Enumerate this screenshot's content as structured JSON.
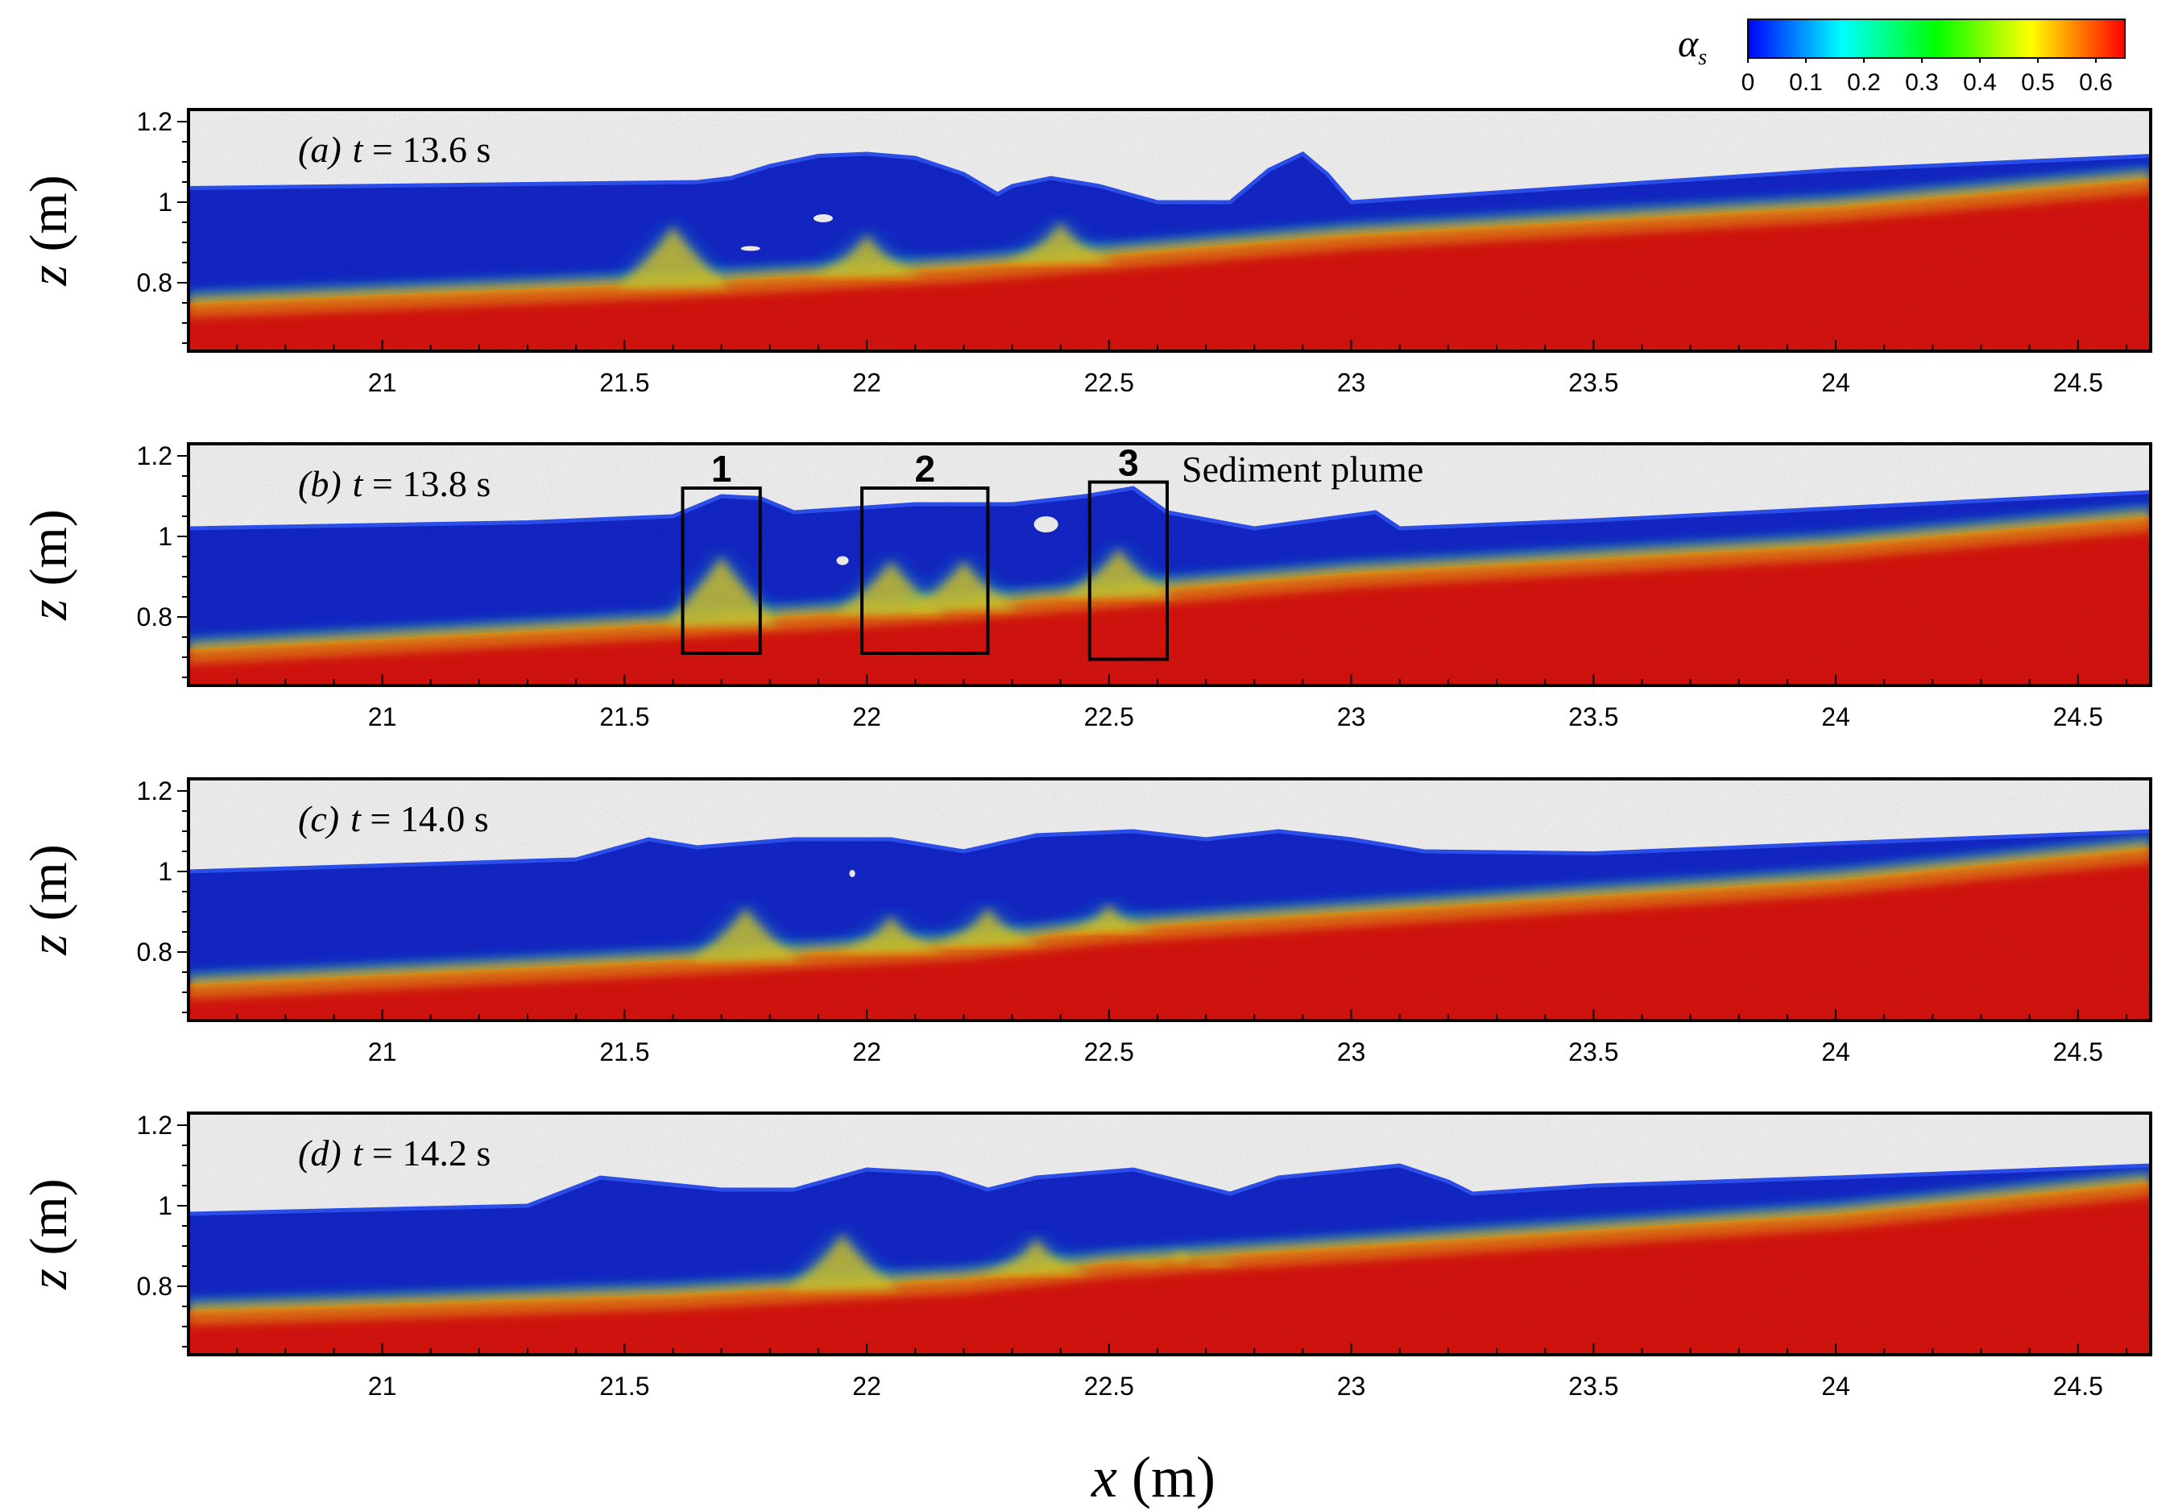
{
  "chart_data": {
    "type": "heatmap",
    "colorbar": {
      "label": "α_s",
      "label_symbol": "α",
      "label_subscript": "s",
      "range": [
        0,
        0.65
      ],
      "ticks": [
        "0",
        "0.1",
        "0.2",
        "0.3",
        "0.4",
        "0.5",
        "0.6"
      ],
      "tick_values": [
        0,
        0.1,
        0.2,
        0.3,
        0.4,
        0.5,
        0.6
      ],
      "colormap": [
        "#0000ff",
        "#00ffff",
        "#00ff00",
        "#ffff00",
        "#ff0000"
      ]
    },
    "xlabel": "x (m)",
    "xlabel_var": "x",
    "xlabel_unit": " (m)",
    "ylabel": "z (m)",
    "ylabel_var": "z",
    "ylabel_unit": " (m)",
    "xlim": [
      20.6,
      24.65
    ],
    "ylim": [
      0.63,
      1.23
    ],
    "xticks": [
      21,
      21.5,
      22,
      22.5,
      23,
      23.5,
      24,
      24.5
    ],
    "xtick_labels": [
      "21",
      "21.5",
      "22",
      "22.5",
      "23",
      "23.5",
      "24",
      "24.5"
    ],
    "yticks": [
      0.8,
      1,
      1.2
    ],
    "ytick_labels": [
      "0.8",
      "1",
      "1.2"
    ],
    "colors": {
      "water": "#1428d2",
      "sediment": "#e2140f",
      "mixing_mid": "#f2d21e",
      "mixing_low": "#1ec8c8"
    },
    "panels": [
      {
        "label": "(a)",
        "time_prefix": "t = ",
        "time": "13.6 s",
        "surface": [
          [
            20.6,
            1.035
          ],
          [
            21.3,
            1.045
          ],
          [
            21.65,
            1.05
          ],
          [
            21.72,
            1.06
          ],
          [
            21.8,
            1.09
          ],
          [
            21.9,
            1.115
          ],
          [
            22.0,
            1.12
          ],
          [
            22.1,
            1.11
          ],
          [
            22.2,
            1.07
          ],
          [
            22.27,
            1.02
          ],
          [
            22.3,
            1.04
          ],
          [
            22.38,
            1.06
          ],
          [
            22.48,
            1.04
          ],
          [
            22.6,
            1.0
          ],
          [
            22.75,
            1.0
          ],
          [
            22.83,
            1.08
          ],
          [
            22.9,
            1.12
          ],
          [
            22.95,
            1.07
          ],
          [
            23.0,
            1.0
          ],
          [
            23.5,
            1.04
          ],
          [
            24.0,
            1.08
          ],
          [
            24.65,
            1.115
          ]
        ],
        "bed": [
          [
            20.6,
            0.75
          ],
          [
            21.6,
            0.8
          ],
          [
            22.2,
            0.84
          ],
          [
            22.5,
            0.87
          ],
          [
            23.0,
            0.92
          ],
          [
            24.0,
            0.99
          ],
          [
            24.65,
            1.06
          ]
        ],
        "plumes": [
          [
            21.6,
            0.95
          ],
          [
            22.0,
            0.93
          ],
          [
            22.4,
            0.96
          ]
        ],
        "bubbles": [
          [
            21.91,
            0.96,
            0.04,
            0.02
          ],
          [
            21.76,
            0.885,
            0.04,
            0.012
          ]
        ],
        "boxes": []
      },
      {
        "label": "(b)",
        "time_prefix": "t = ",
        "time": "13.8 s",
        "surface": [
          [
            20.6,
            1.02
          ],
          [
            21.3,
            1.035
          ],
          [
            21.6,
            1.05
          ],
          [
            21.7,
            1.1
          ],
          [
            21.78,
            1.095
          ],
          [
            21.85,
            1.06
          ],
          [
            22.1,
            1.08
          ],
          [
            22.3,
            1.08
          ],
          [
            22.45,
            1.1
          ],
          [
            22.55,
            1.12
          ],
          [
            22.62,
            1.06
          ],
          [
            22.8,
            1.02
          ],
          [
            23.05,
            1.06
          ],
          [
            23.1,
            1.02
          ],
          [
            23.5,
            1.04
          ],
          [
            24.0,
            1.07
          ],
          [
            24.65,
            1.11
          ]
        ],
        "bed": [
          [
            20.6,
            0.72
          ],
          [
            21.6,
            0.785
          ],
          [
            22.2,
            0.83
          ],
          [
            22.5,
            0.86
          ],
          [
            23.0,
            0.91
          ],
          [
            24.0,
            0.98
          ],
          [
            24.65,
            1.05
          ]
        ],
        "plumes": [
          [
            21.7,
            0.96
          ],
          [
            22.05,
            0.95
          ],
          [
            22.2,
            0.95
          ],
          [
            22.52,
            0.98
          ]
        ],
        "bubbles": [
          [
            21.95,
            0.94,
            0.025,
            0.022
          ],
          [
            22.37,
            1.03,
            0.05,
            0.04
          ]
        ],
        "boxes": [
          {
            "id": "1",
            "x0": 21.62,
            "x1": 21.78,
            "z0": 0.71,
            "z1": 1.12
          },
          {
            "id": "2",
            "x0": 21.99,
            "x1": 22.25,
            "z0": 0.71,
            "z1": 1.12
          },
          {
            "id": "3",
            "x0": 22.46,
            "x1": 22.62,
            "z0": 0.695,
            "z1": 1.135
          }
        ],
        "annotation": "Sediment plume"
      },
      {
        "label": "(c)",
        "time_prefix": "t = ",
        "time": "14.0 s",
        "surface": [
          [
            20.6,
            1.0
          ],
          [
            21.4,
            1.03
          ],
          [
            21.55,
            1.08
          ],
          [
            21.65,
            1.06
          ],
          [
            21.85,
            1.08
          ],
          [
            22.05,
            1.08
          ],
          [
            22.2,
            1.05
          ],
          [
            22.35,
            1.09
          ],
          [
            22.55,
            1.1
          ],
          [
            22.7,
            1.08
          ],
          [
            22.85,
            1.1
          ],
          [
            23.0,
            1.08
          ],
          [
            23.15,
            1.05
          ],
          [
            23.5,
            1.045
          ],
          [
            24.0,
            1.07
          ],
          [
            24.65,
            1.1
          ]
        ],
        "bed": [
          [
            20.6,
            0.72
          ],
          [
            21.6,
            0.78
          ],
          [
            22.2,
            0.82
          ],
          [
            22.5,
            0.86
          ],
          [
            23.0,
            0.9
          ],
          [
            24.0,
            0.98
          ],
          [
            24.65,
            1.06
          ]
        ],
        "plumes": [
          [
            21.75,
            0.92
          ],
          [
            22.05,
            0.9
          ],
          [
            22.25,
            0.92
          ],
          [
            22.5,
            0.93
          ]
        ],
        "bubbles": [
          [
            21.97,
            0.995,
            0.012,
            0.018
          ]
        ],
        "boxes": []
      },
      {
        "label": "(d)",
        "time_prefix": "t = ",
        "time": "14.2 s",
        "surface": [
          [
            20.6,
            0.98
          ],
          [
            21.3,
            1.0
          ],
          [
            21.45,
            1.07
          ],
          [
            21.7,
            1.04
          ],
          [
            21.85,
            1.04
          ],
          [
            22.0,
            1.09
          ],
          [
            22.15,
            1.08
          ],
          [
            22.25,
            1.04
          ],
          [
            22.35,
            1.07
          ],
          [
            22.55,
            1.09
          ],
          [
            22.75,
            1.03
          ],
          [
            22.85,
            1.07
          ],
          [
            23.1,
            1.1
          ],
          [
            23.2,
            1.06
          ],
          [
            23.25,
            1.03
          ],
          [
            23.5,
            1.05
          ],
          [
            24.0,
            1.07
          ],
          [
            24.65,
            1.1
          ]
        ],
        "bed": [
          [
            20.6,
            0.74
          ],
          [
            21.6,
            0.78
          ],
          [
            22.2,
            0.82
          ],
          [
            22.5,
            0.86
          ],
          [
            23.0,
            0.9
          ],
          [
            24.0,
            0.98
          ],
          [
            24.65,
            1.06
          ]
        ],
        "plumes": [
          [
            21.95,
            0.94
          ],
          [
            22.35,
            0.93
          ],
          [
            22.65,
            0.9
          ]
        ],
        "bubbles": [],
        "boxes": []
      }
    ]
  }
}
